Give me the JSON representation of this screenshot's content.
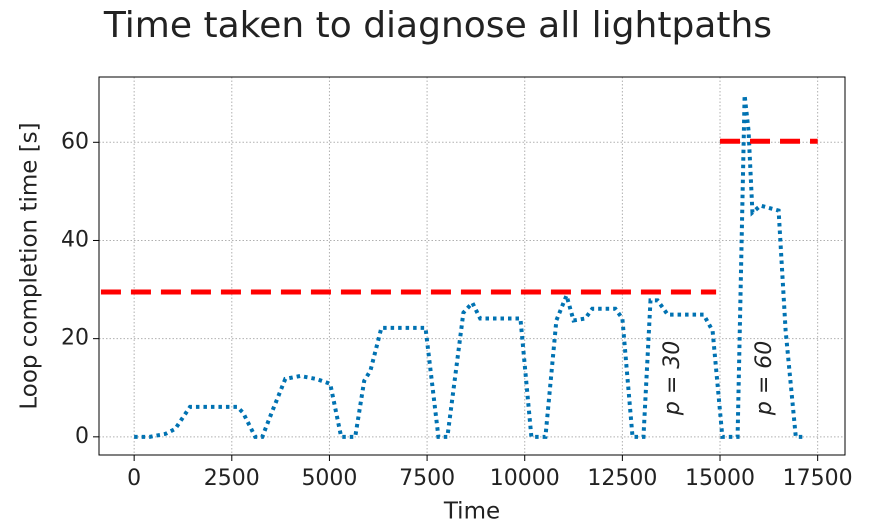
{
  "chart_data": {
    "type": "line",
    "title": "Time taken to diagnose all lightpaths",
    "xlabel": "Time",
    "ylabel": "Loop completion time [s]",
    "xlim": [
      -900,
      18200
    ],
    "ylim": [
      -3.7,
      73.3
    ],
    "xticks": [
      0,
      2500,
      5000,
      7500,
      10000,
      12500,
      15000,
      17500
    ],
    "yticks": [
      0,
      20,
      40,
      60
    ],
    "grid": true,
    "series": [
      {
        "color": "#0072b2",
        "style": "dotted",
        "x": [
          0,
          400,
          800,
          1050,
          1430,
          2640,
          2790,
          3100,
          3280,
          3540,
          3870,
          4250,
          4660,
          5020,
          5300,
          5660,
          5890,
          6050,
          6330,
          7460,
          7790,
          8020,
          8430,
          8660,
          8860,
          9890,
          10170,
          10530,
          10810,
          11070,
          11250,
          11550,
          11730,
          12320,
          12500,
          12760,
          13040,
          13220,
          13400,
          13660,
          14580,
          14810,
          15060,
          15450,
          15630,
          15730,
          15830,
          16040,
          16500,
          16680,
          16940,
          17190
        ],
        "values": [
          0,
          0,
          0.6,
          1.6,
          6.1,
          6.1,
          4.9,
          0,
          0,
          5.3,
          11.8,
          12.4,
          11.8,
          10.8,
          0,
          0,
          11.4,
          13.5,
          22.2,
          22.2,
          0,
          0,
          25.3,
          27.3,
          24.1,
          24.1,
          0,
          0,
          23.7,
          28.8,
          23.7,
          24.1,
          26.1,
          26.1,
          24.1,
          0,
          0,
          27.8,
          27.8,
          24.9,
          24.9,
          21.6,
          0,
          0,
          69.6,
          62.4,
          45.7,
          47.1,
          46.1,
          21.6,
          0,
          0
        ]
      },
      {
        "color": "#ff0000",
        "style": "dashed",
        "x": [
          -850,
          14900
        ],
        "values": [
          29.5,
          29.5
        ]
      },
      {
        "color": "#ff0000",
        "style": "dashed",
        "x": [
          15000,
          17500
        ],
        "values": [
          60.2,
          60.2
        ]
      }
    ],
    "annotations": [
      {
        "text": "p = 30",
        "x": 13800,
        "y": 12
      },
      {
        "text": "p = 60",
        "x": 16150,
        "y": 12
      }
    ]
  }
}
